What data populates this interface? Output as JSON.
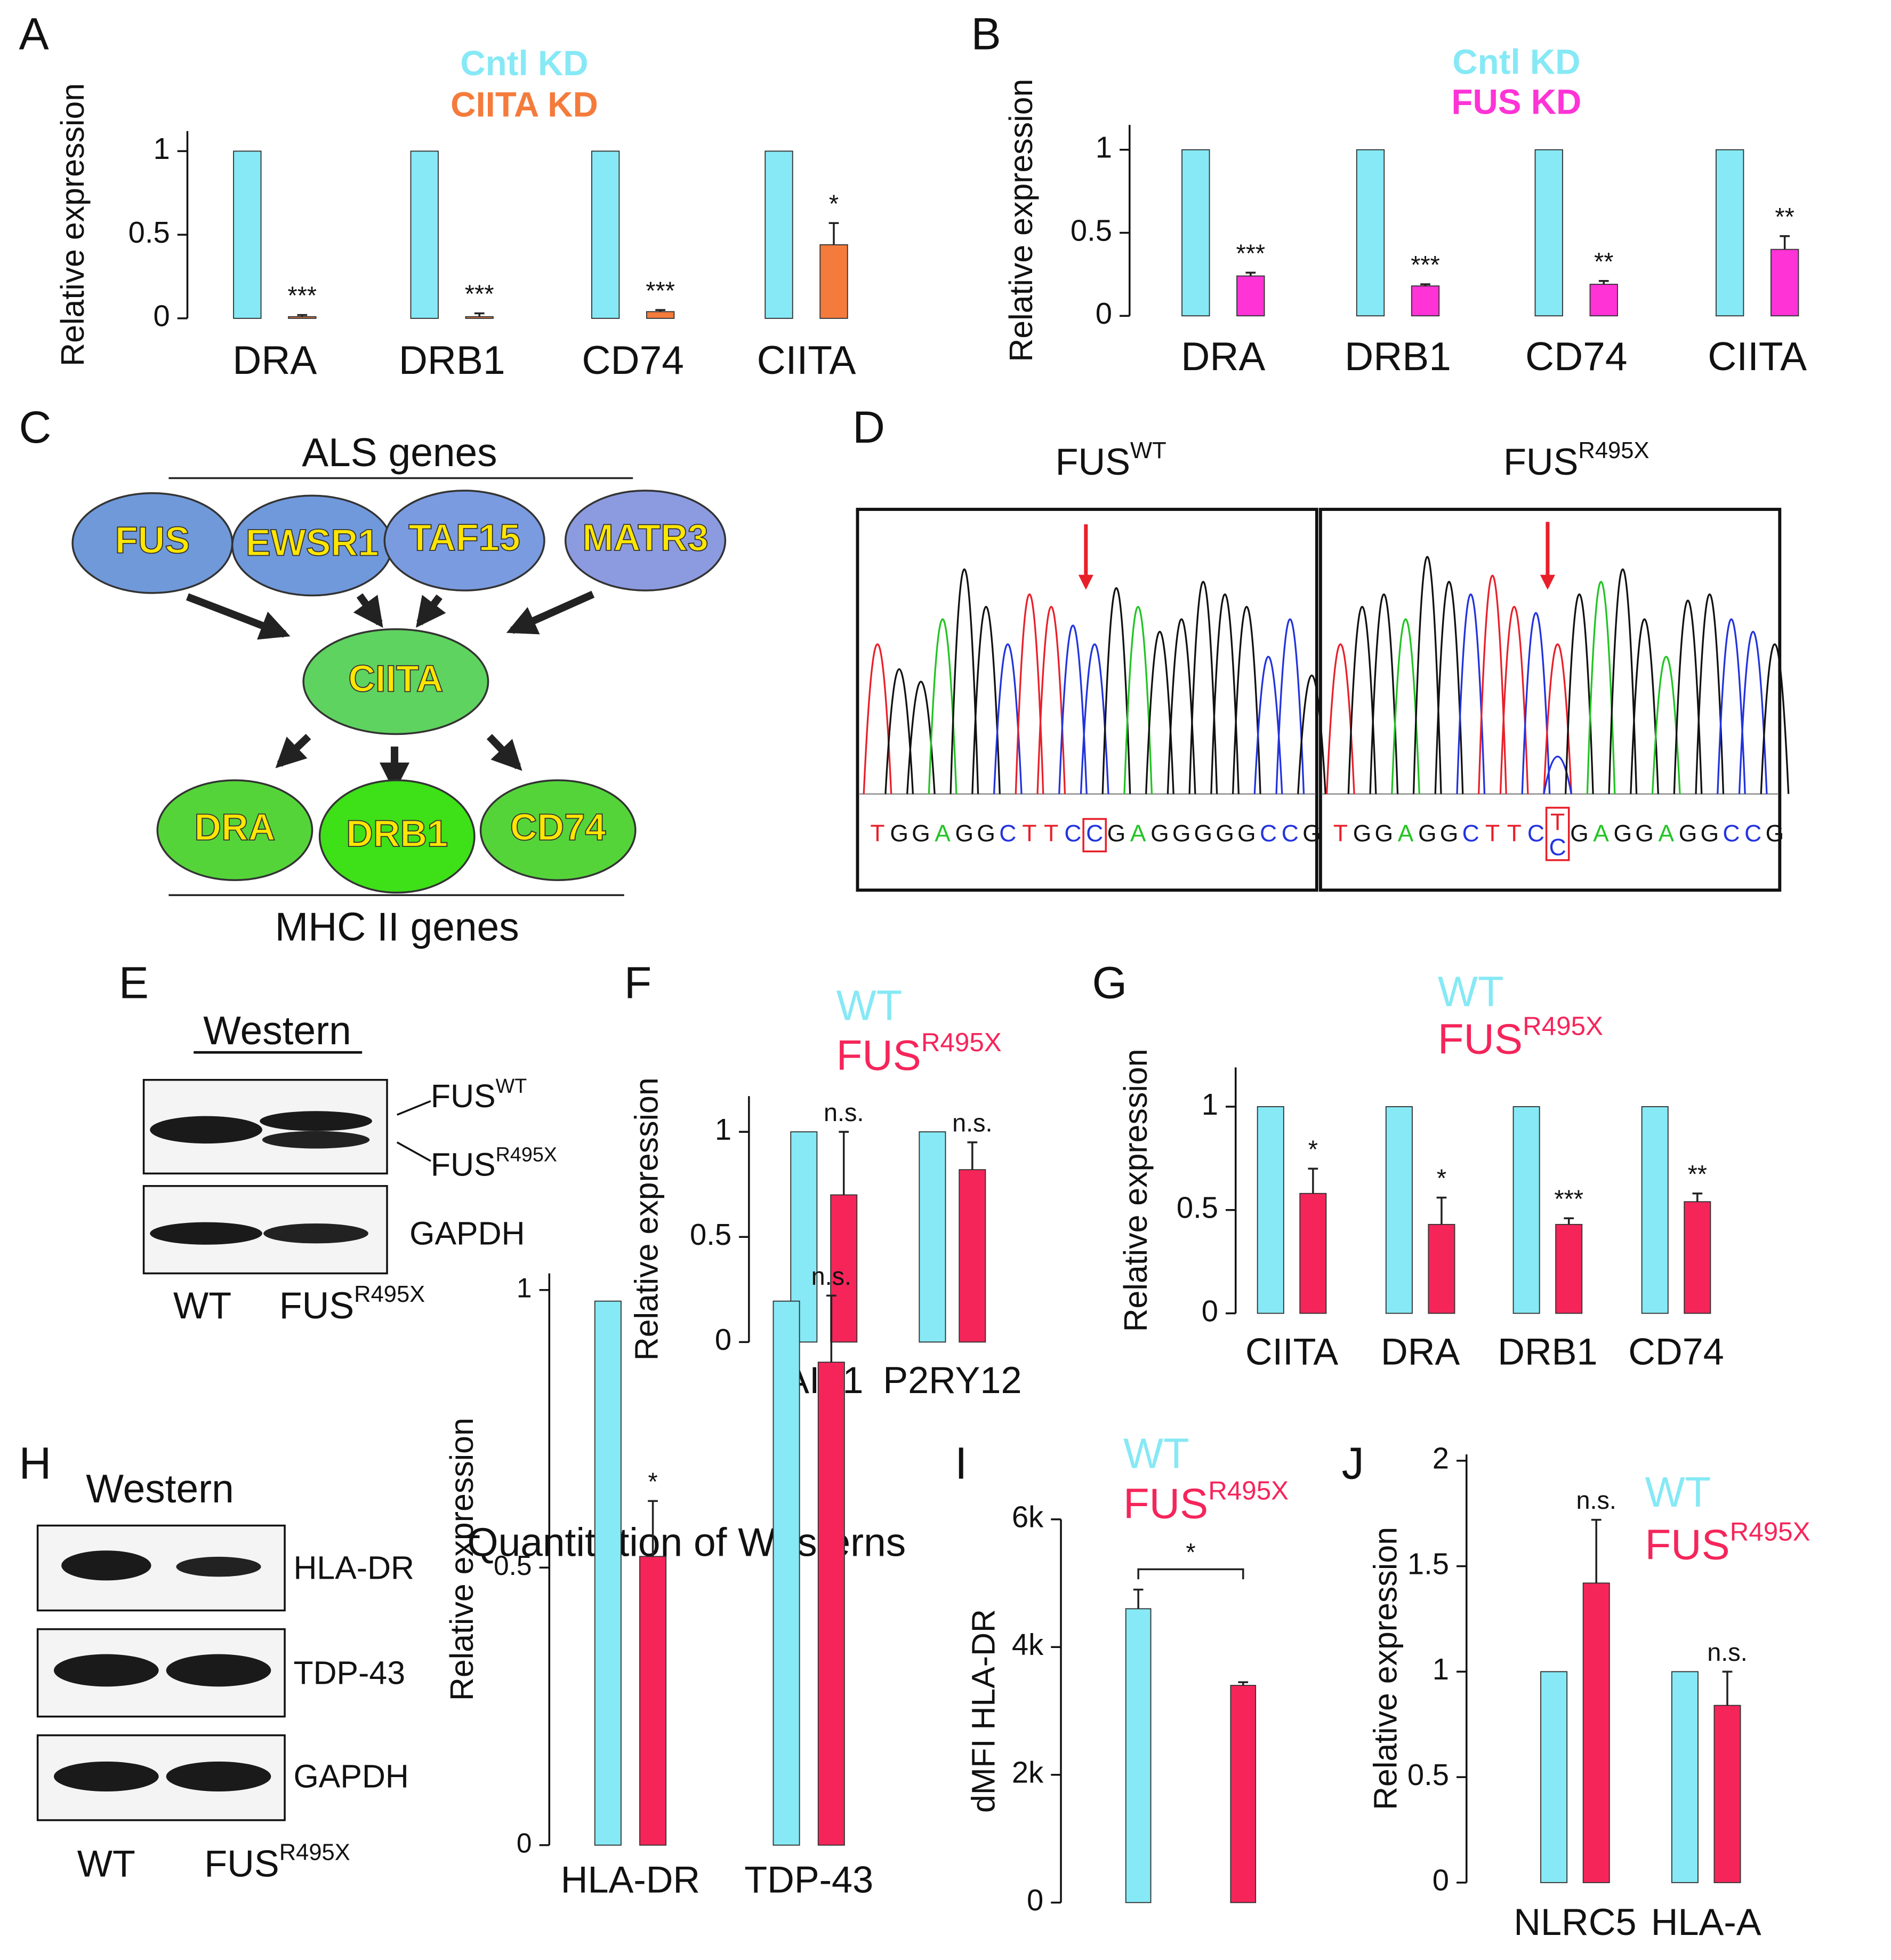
{
  "panel_labels": [
    "A",
    "B",
    "C",
    "D",
    "E",
    "F",
    "G",
    "H",
    "I",
    "J"
  ],
  "chart_data": [
    {
      "type": "bar",
      "ylabel": "Relative expression",
      "categories": [
        "DRA",
        "DRB1",
        "CD74",
        "CIITA"
      ],
      "series": [
        {
          "name": "Cntl KD",
          "color": "#86e9f5",
          "values": [
            1,
            1,
            1,
            1
          ]
        },
        {
          "name": "CIITA KD",
          "color": "#f47b3c",
          "values": [
            0.01,
            0.01,
            0.04,
            0.44
          ],
          "errors": [
            0.01,
            0.02,
            0.01,
            0.13
          ],
          "significance": [
            "***",
            "***",
            "***",
            "*"
          ]
        }
      ],
      "ylim": [
        0,
        1.12
      ],
      "yticks": [
        0,
        0.5,
        1
      ]
    },
    {
      "type": "bar",
      "ylabel": "Relative expression",
      "categories": [
        "DRA",
        "DRB1",
        "CD74",
        "CIITA"
      ],
      "series": [
        {
          "name": "Cntl KD",
          "color": "#86e9f5",
          "values": [
            1,
            1,
            1,
            1
          ]
        },
        {
          "name": "FUS KD",
          "color": "#ff33d6",
          "values": [
            0.24,
            0.18,
            0.19,
            0.4
          ],
          "errors": [
            0.02,
            0.01,
            0.02,
            0.08
          ],
          "significance": [
            "***",
            "***",
            "**",
            "**"
          ]
        }
      ],
      "ylim": [
        0,
        1.15
      ],
      "yticks": [
        0,
        0.5,
        1
      ]
    },
    {
      "type": "bar",
      "ylabel": "Relative expression",
      "categories": [
        "AIF1",
        "P2RY12"
      ],
      "series": [
        {
          "name": "WT",
          "color": "#86e9f5",
          "values": [
            1,
            1
          ]
        },
        {
          "name": "FUS",
          "name_sup": "R495X",
          "color": "#f5255a",
          "values": [
            0.7,
            0.82
          ],
          "errors": [
            0.3,
            0.13
          ],
          "significance": [
            "n.s.",
            "n.s."
          ]
        }
      ],
      "ylim": [
        0,
        1.17
      ],
      "yticks": [
        0,
        0.5,
        1
      ]
    },
    {
      "type": "bar",
      "ylabel": "Relative expression",
      "categories": [
        "CIITA",
        "DRA",
        "DRB1",
        "CD74"
      ],
      "series": [
        {
          "name": "WT",
          "color": "#86e9f5",
          "values": [
            1,
            1,
            1,
            1
          ]
        },
        {
          "name": "FUS",
          "name_sup": "R495X",
          "color": "#f5255a",
          "values": [
            0.58,
            0.43,
            0.43,
            0.54
          ],
          "errors": [
            0.12,
            0.13,
            0.03,
            0.04
          ],
          "significance": [
            "*",
            "*",
            "***",
            "**"
          ]
        }
      ],
      "ylim": [
        0,
        1.19
      ],
      "yticks": [
        0,
        0.5,
        1
      ]
    },
    {
      "type": "bar",
      "title": "Quantitation of Westerns",
      "ylabel": "Relative expression",
      "categories": [
        "HLA-DR",
        "TDP-43"
      ],
      "series": [
        {
          "color": "#86e9f5",
          "values": [
            0.98,
            0.98
          ]
        },
        {
          "color": "#f5255a",
          "values": [
            0.52,
            0.87
          ],
          "errors": [
            0.1,
            0.12
          ],
          "significance": [
            "*",
            "n.s."
          ]
        }
      ],
      "ylim": [
        0,
        1.03
      ],
      "yticks": [
        0,
        0.5,
        1
      ]
    },
    {
      "type": "bar",
      "ylabel": "dMFI HLA-DR",
      "categories": [
        null
      ],
      "series": [
        {
          "name": "WT",
          "color": "#86e9f5",
          "values": [
            4600
          ],
          "errors": [
            300
          ]
        },
        {
          "name": "FUS",
          "name_sup": "R495X",
          "color": "#f5255a",
          "values": [
            3400
          ],
          "errors": [
            50
          ]
        }
      ],
      "bracket_label": "*",
      "ylim": [
        0,
        6000
      ],
      "yticks": [
        0,
        {
          "value": 2000,
          "label": "2k"
        },
        {
          "value": 4000,
          "label": "4k"
        },
        {
          "value": 6000,
          "label": "6k"
        }
      ]
    },
    {
      "type": "bar",
      "ylabel": "Relative expression",
      "categories": [
        "NLRC5",
        "HLA-A"
      ],
      "series": [
        {
          "name": "WT",
          "color": "#86e9f5",
          "values": [
            1,
            1
          ]
        },
        {
          "name": "FUS",
          "name_sup": "R495X",
          "color": "#f5255a",
          "values": [
            1.42,
            0.84
          ],
          "errors": [
            0.3,
            0.16
          ],
          "significance": [
            "n.s.",
            "n.s."
          ]
        }
      ],
      "ylim": [
        0,
        2.03
      ],
      "yticks": [
        0,
        0.5,
        1,
        1.5,
        2
      ]
    }
  ],
  "diagram": {
    "top_label": "ALS genes",
    "top_nodes": [
      "FUS",
      "EWSR1",
      "TAF15",
      "MATR3"
    ],
    "center_node": "CIITA",
    "bottom_nodes": [
      "DRA",
      "DRB1",
      "CD74"
    ],
    "bottom_label": "MHC II genes"
  },
  "sequencing": {
    "traces": [
      {
        "title": "FUS",
        "title_sup": "WT",
        "sequence": [
          "T",
          "G",
          "G",
          "A",
          "G",
          "G",
          "C",
          "T",
          "T",
          "C",
          "C",
          "G",
          "A",
          "G",
          "G",
          "G",
          "G",
          "G",
          "C",
          "C",
          "G"
        ]
      },
      {
        "title": "FUS",
        "title_sup": "R495X",
        "sequence": [
          "T",
          "G",
          "G",
          "A",
          "G",
          "G",
          "C",
          "T",
          "T",
          "C",
          [
            "T",
            "C"
          ],
          "G",
          "A",
          "G",
          "G",
          "A",
          "G",
          "G",
          "C",
          "C",
          "G"
        ]
      }
    ]
  },
  "westerns": [
    {
      "title": "Western",
      "band_labels": [
        {
          "text": "FUS",
          "sup": "WT"
        },
        {
          "text": "FUS",
          "sup": "R495X"
        },
        {
          "text": "GAPDH"
        }
      ],
      "lane_labels": [
        {
          "text": "WT"
        },
        {
          "text": "FUS",
          "sup": "R495X"
        }
      ]
    },
    {
      "title": "Western",
      "band_labels": [
        {
          "text": "HLA-DR"
        },
        {
          "text": "TDP-43"
        },
        {
          "text": "GAPDH"
        }
      ],
      "lane_labels": [
        {
          "text": "WT"
        },
        {
          "text": "FUS",
          "sup": "R495X"
        }
      ]
    }
  ]
}
